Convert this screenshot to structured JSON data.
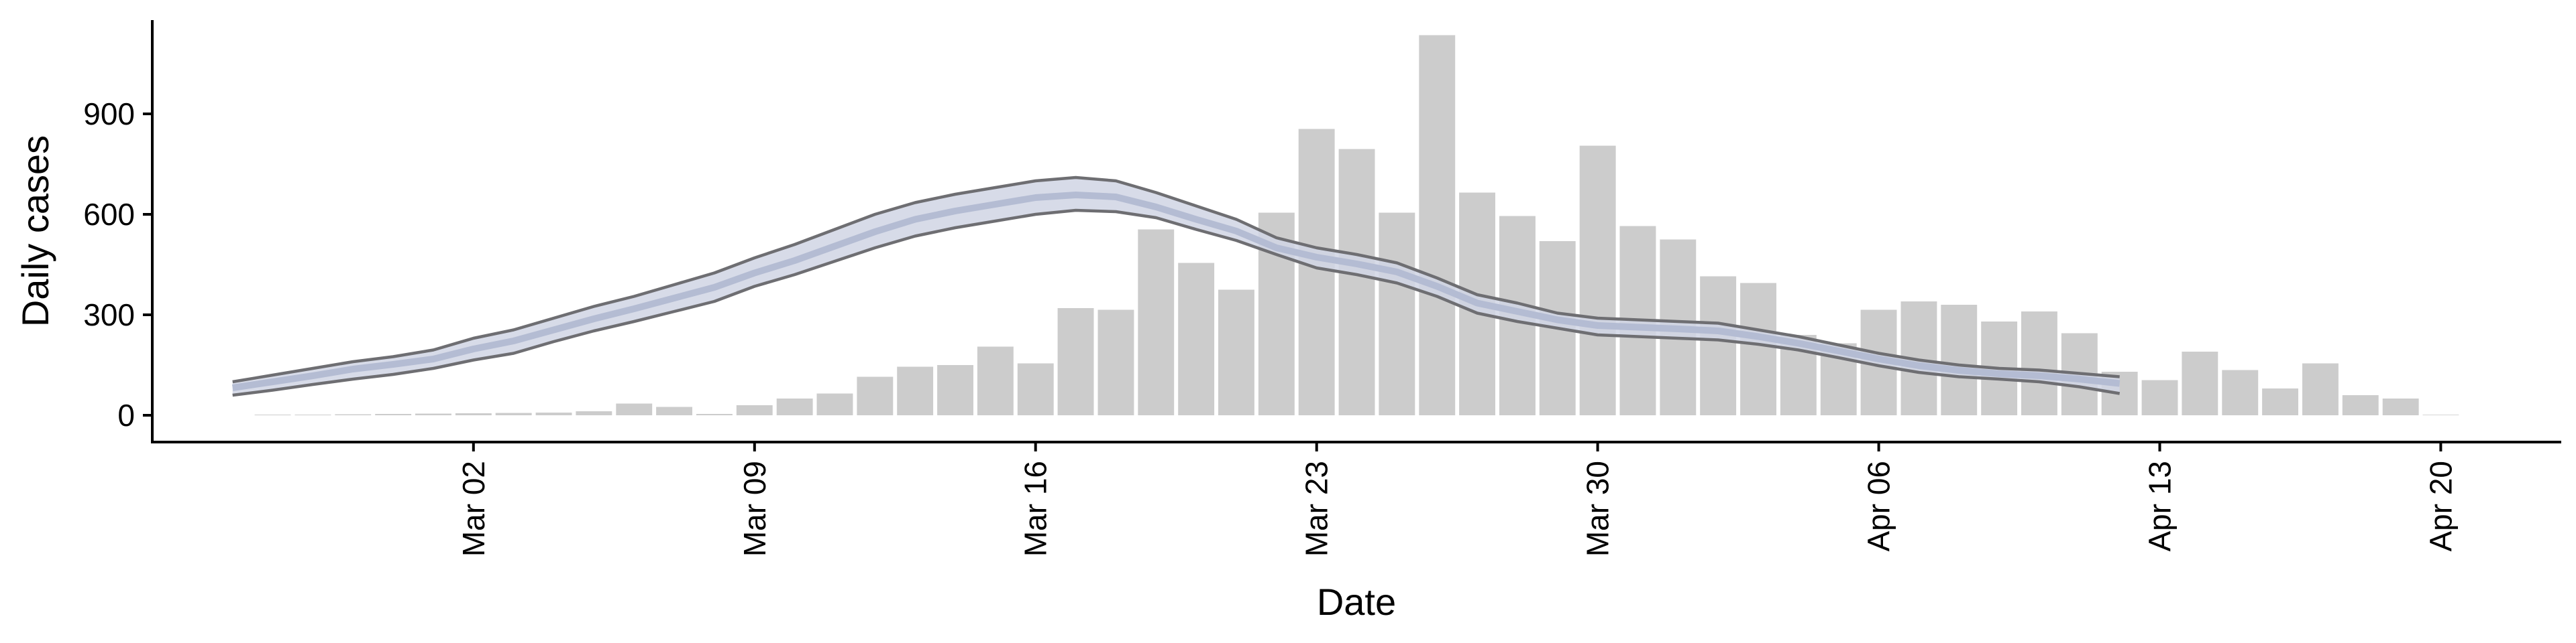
{
  "chart_data": {
    "type": "bar",
    "title": "",
    "xlabel": "Date",
    "ylabel": "Daily cases",
    "grid": false,
    "legend": "none",
    "ylim": [
      -80,
      1180
    ],
    "xlim": [
      "2020-02-23",
      "2020-04-23"
    ],
    "y_ticks": [
      0,
      300,
      600,
      900
    ],
    "x_ticks": [
      {
        "date": "2020-03-02",
        "label": "Mar 02"
      },
      {
        "date": "2020-03-09",
        "label": "Mar 09"
      },
      {
        "date": "2020-03-16",
        "label": "Mar 16"
      },
      {
        "date": "2020-03-23",
        "label": "Mar 23"
      },
      {
        "date": "2020-03-30",
        "label": "Mar 30"
      },
      {
        "date": "2020-04-06",
        "label": "Apr 06"
      },
      {
        "date": "2020-04-13",
        "label": "Apr 13"
      },
      {
        "date": "2020-04-20",
        "label": "Apr 20"
      }
    ],
    "colors": {
      "bars": "#cccccc",
      "band": "#d0d5e4",
      "median": "#b4bcd3",
      "bounds": "#6e6e72"
    },
    "bars": {
      "dates": [
        "2020-02-26",
        "2020-02-27",
        "2020-02-28",
        "2020-02-29",
        "2020-03-01",
        "2020-03-02",
        "2020-03-03",
        "2020-03-04",
        "2020-03-05",
        "2020-03-06",
        "2020-03-07",
        "2020-03-08",
        "2020-03-09",
        "2020-03-10",
        "2020-03-11",
        "2020-03-12",
        "2020-03-13",
        "2020-03-14",
        "2020-03-15",
        "2020-03-16",
        "2020-03-17",
        "2020-03-18",
        "2020-03-19",
        "2020-03-20",
        "2020-03-21",
        "2020-03-22",
        "2020-03-23",
        "2020-03-24",
        "2020-03-25",
        "2020-03-26",
        "2020-03-27",
        "2020-03-28",
        "2020-03-29",
        "2020-03-30",
        "2020-03-31",
        "2020-04-01",
        "2020-04-02",
        "2020-04-03",
        "2020-04-04",
        "2020-04-05",
        "2020-04-06",
        "2020-04-07",
        "2020-04-08",
        "2020-04-09",
        "2020-04-10",
        "2020-04-11",
        "2020-04-12",
        "2020-04-13",
        "2020-04-14",
        "2020-04-15",
        "2020-04-16",
        "2020-04-17",
        "2020-04-18",
        "2020-04-19",
        "2020-04-20"
      ],
      "values": [
        2,
        2,
        3,
        4,
        5,
        6,
        7,
        8,
        12,
        35,
        25,
        4,
        30,
        50,
        65,
        115,
        145,
        150,
        205,
        155,
        320,
        315,
        555,
        455,
        375,
        605,
        855,
        795,
        605,
        1135,
        665,
        595,
        520,
        805,
        565,
        525,
        415,
        395,
        240,
        215,
        315,
        340,
        330,
        280,
        310,
        245,
        130,
        105,
        190,
        135,
        80,
        155,
        60,
        50,
        0
      ]
    },
    "series": [
      {
        "dates": [
          "2020-02-25",
          "2020-02-26",
          "2020-02-27",
          "2020-02-28",
          "2020-02-29",
          "2020-03-01",
          "2020-03-02",
          "2020-03-03",
          "2020-03-04",
          "2020-03-05",
          "2020-03-06",
          "2020-03-07",
          "2020-03-08",
          "2020-03-09",
          "2020-03-10",
          "2020-03-11",
          "2020-03-12",
          "2020-03-13",
          "2020-03-14",
          "2020-03-15",
          "2020-03-16",
          "2020-03-17",
          "2020-03-18",
          "2020-03-19",
          "2020-03-20",
          "2020-03-21",
          "2020-03-22",
          "2020-03-23",
          "2020-03-24",
          "2020-03-25",
          "2020-03-26",
          "2020-03-27",
          "2020-03-28",
          "2020-03-29",
          "2020-03-30",
          "2020-03-31",
          "2020-04-01",
          "2020-04-02",
          "2020-04-03",
          "2020-04-04",
          "2020-04-05",
          "2020-04-06",
          "2020-04-07",
          "2020-04-08",
          "2020-04-09",
          "2020-04-10",
          "2020-04-11",
          "2020-04-12"
        ],
        "upper": [
          100,
          120,
          140,
          160,
          175,
          195,
          230,
          255,
          290,
          325,
          355,
          390,
          425,
          470,
          510,
          555,
          600,
          635,
          660,
          680,
          700,
          710,
          700,
          665,
          625,
          585,
          530,
          500,
          480,
          455,
          410,
          360,
          335,
          305,
          290,
          285,
          280,
          275,
          255,
          235,
          210,
          185,
          165,
          150,
          140,
          135,
          125,
          115
        ],
        "median": [
          82,
          100,
          118,
          138,
          152,
          168,
          198,
          222,
          255,
          288,
          318,
          350,
          382,
          425,
          462,
          505,
          548,
          585,
          610,
          630,
          650,
          658,
          652,
          622,
          585,
          550,
          500,
          472,
          452,
          428,
          385,
          335,
          310,
          285,
          268,
          263,
          258,
          252,
          235,
          215,
          192,
          168,
          148,
          134,
          124,
          118,
          108,
          95
        ],
        "lower": [
          60,
          75,
          92,
          108,
          122,
          140,
          165,
          185,
          220,
          252,
          280,
          310,
          340,
          385,
          420,
          460,
          500,
          535,
          560,
          580,
          600,
          612,
          608,
          590,
          555,
          522,
          480,
          440,
          420,
          395,
          355,
          305,
          280,
          260,
          240,
          235,
          230,
          225,
          212,
          195,
          172,
          148,
          128,
          115,
          108,
          100,
          85,
          65
        ]
      }
    ]
  }
}
